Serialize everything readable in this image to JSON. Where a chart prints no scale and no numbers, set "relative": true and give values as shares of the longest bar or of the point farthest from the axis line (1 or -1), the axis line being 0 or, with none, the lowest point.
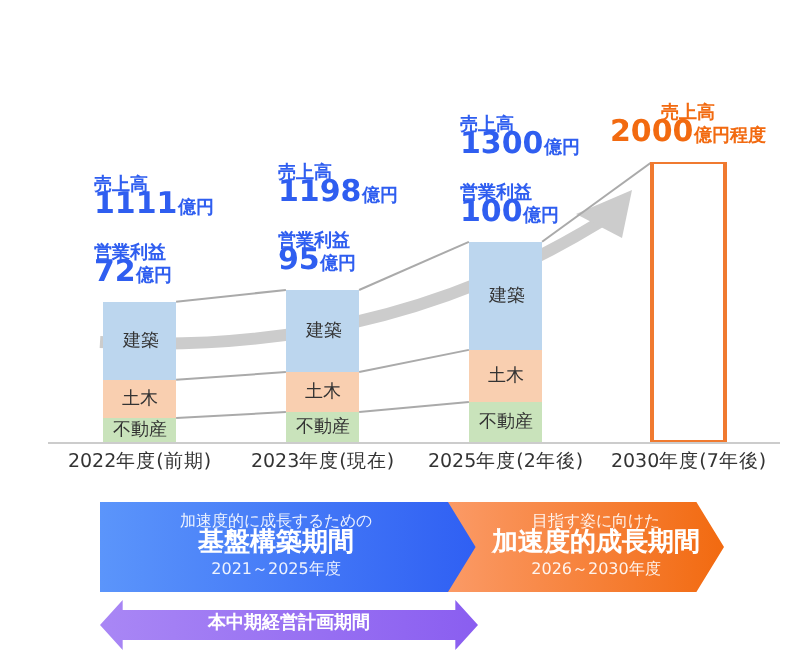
{
  "chart_data": {
    "type": "bar",
    "stacked": true,
    "relative": true,
    "legend": false,
    "categories": [
      "2022年度(前期)",
      "2023年度(現在)",
      "2025年度(2年後)",
      "2030年度(7年後)"
    ],
    "series": [
      {
        "name": "不動産",
        "color": "#c9e3bb",
        "values": [
          0.086,
          0.107,
          0.143,
          null
        ]
      },
      {
        "name": "土木",
        "color": "#f9cfb0",
        "values": [
          0.136,
          0.143,
          0.186,
          null
        ]
      },
      {
        "name": "建築",
        "color": "#bcd6ee",
        "values": [
          0.279,
          0.293,
          0.386,
          null
        ]
      },
      {
        "color": "#f07a30",
        "values": [
          null,
          null,
          null,
          1
        ]
      }
    ],
    "annotations": [
      {
        "text": "売上高1111億円",
        "x": "2022年度(前期)",
        "y": 0.501
      },
      {
        "text": "営業利益72億円",
        "x": "2022年度(前期)",
        "y": 0.501
      },
      {
        "text": "売上高1198億円",
        "x": "2023年度(現在)",
        "y": 0.543
      },
      {
        "text": "営業利益95億円",
        "x": "2023年度(現在)",
        "y": 0.543
      },
      {
        "text": "売上高1300億円",
        "x": "2025年度(2年後)",
        "y": 0.715
      },
      {
        "text": "営業利益100億円",
        "x": "2025年度(2年後)",
        "y": 0.715
      },
      {
        "text": "売上高2000億円程度",
        "x": "2030年度(7年後)",
        "y": 1
      },
      "加速度的に成長するための",
      "基盤構築期間",
      "2021～2025年度",
      "目指す姿に向けた",
      "加速度的成長期間",
      "2026～2030年度",
      "本中期経営計画期間"
    ]
  }
}
